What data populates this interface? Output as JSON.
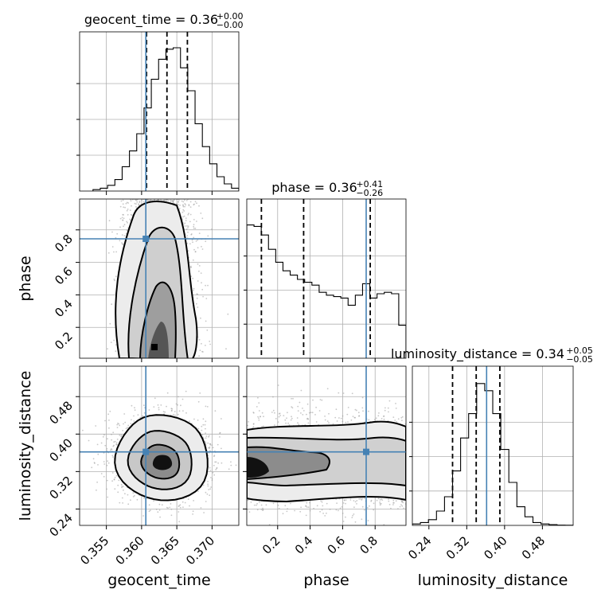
{
  "chart_data": {
    "type": "corner",
    "parameters": [
      "geocent_time",
      "phase",
      "luminosity_distance"
    ],
    "titles": [
      {
        "param": "geocent_time",
        "text": "geocent_time = 0.36",
        "sup": "+0.00",
        "sub": "−0.00"
      },
      {
        "param": "phase",
        "text": "phase = 0.36",
        "sup": "+0.41",
        "sub": "−0.26"
      },
      {
        "param": "luminosity_distance",
        "text": "luminosity_distance = 0.34",
        "sup": "+0.05",
        "sub": "−0.05"
      }
    ],
    "axis_labels": {
      "x": [
        "geocent_time",
        "phase",
        "luminosity_distance"
      ],
      "y": [
        "phase",
        "luminosity_distance"
      ]
    },
    "ranges": {
      "geocent_time": [
        0.3512,
        0.3738
      ],
      "phase": [
        0.01,
        0.99
      ],
      "luminosity_distance": [
        0.205,
        0.545
      ]
    },
    "ticks": {
      "geocent_time": [
        "0.355",
        "0.360",
        "0.365",
        "0.370"
      ],
      "phase": [
        "0.2",
        "0.4",
        "0.6",
        "0.8"
      ],
      "luminosity_distance": [
        "0.24",
        "0.32",
        "0.40",
        "0.48"
      ]
    },
    "truths": {
      "geocent_time": 0.3606,
      "phase": 0.745,
      "luminosity_distance": 0.362
    },
    "quantiles": {
      "geocent_time": [
        0.3607,
        0.3636,
        0.3665
      ],
      "phase": [
        0.1,
        0.36,
        0.77
      ],
      "luminosity_distance": [
        0.29,
        0.34,
        0.39
      ]
    },
    "histograms": {
      "geocent_time": [
        0.01,
        0.02,
        0.04,
        0.08,
        0.17,
        0.28,
        0.4,
        0.58,
        0.78,
        0.92,
        0.99,
        1.0,
        0.86,
        0.7,
        0.47,
        0.31,
        0.19,
        0.1,
        0.05,
        0.02
      ],
      "phase": [
        0.93,
        0.92,
        0.86,
        0.76,
        0.67,
        0.61,
        0.58,
        0.55,
        0.53,
        0.51,
        0.46,
        0.44,
        0.43,
        0.42,
        0.37,
        0.44,
        0.52,
        0.42,
        0.45,
        0.46,
        0.45,
        0.23
      ],
      "luminosity_distance": [
        0.01,
        0.02,
        0.04,
        0.1,
        0.2,
        0.38,
        0.61,
        0.78,
        0.99,
        0.94,
        0.78,
        0.53,
        0.3,
        0.13,
        0.06,
        0.02,
        0.01,
        0.005,
        0.002,
        0.001
      ]
    },
    "grid": true
  }
}
